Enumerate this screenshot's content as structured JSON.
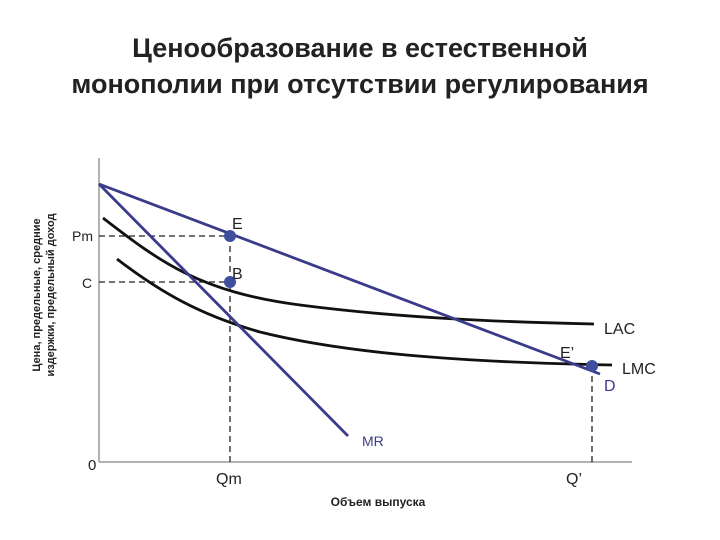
{
  "title": {
    "line1": "Ценообразование в естественной",
    "line2": "монополии при отсутствии регулирования"
  },
  "axes": {
    "y_label_line1": "Цена, предельные, средние",
    "y_label_line2": "издержки, предельный доход",
    "x_label": "Объем выпуска",
    "origin": "0"
  },
  "price_labels": {
    "pm": "Pm",
    "c": "C"
  },
  "quantity_labels": {
    "qm": "Qm",
    "q_prime": "Q’"
  },
  "curve_labels": {
    "lac": "LAC",
    "lmc": "LMC",
    "d": "D",
    "mr": "MR"
  },
  "point_labels": {
    "e": "E",
    "b": "B",
    "e_prime": "E’"
  },
  "colors": {
    "demand": "#3b3b8c",
    "mr": "#3b3b8c",
    "cost_curves": "#111111",
    "points": "#3f4f9e",
    "axis": "#999999",
    "text": "#222222"
  }
}
